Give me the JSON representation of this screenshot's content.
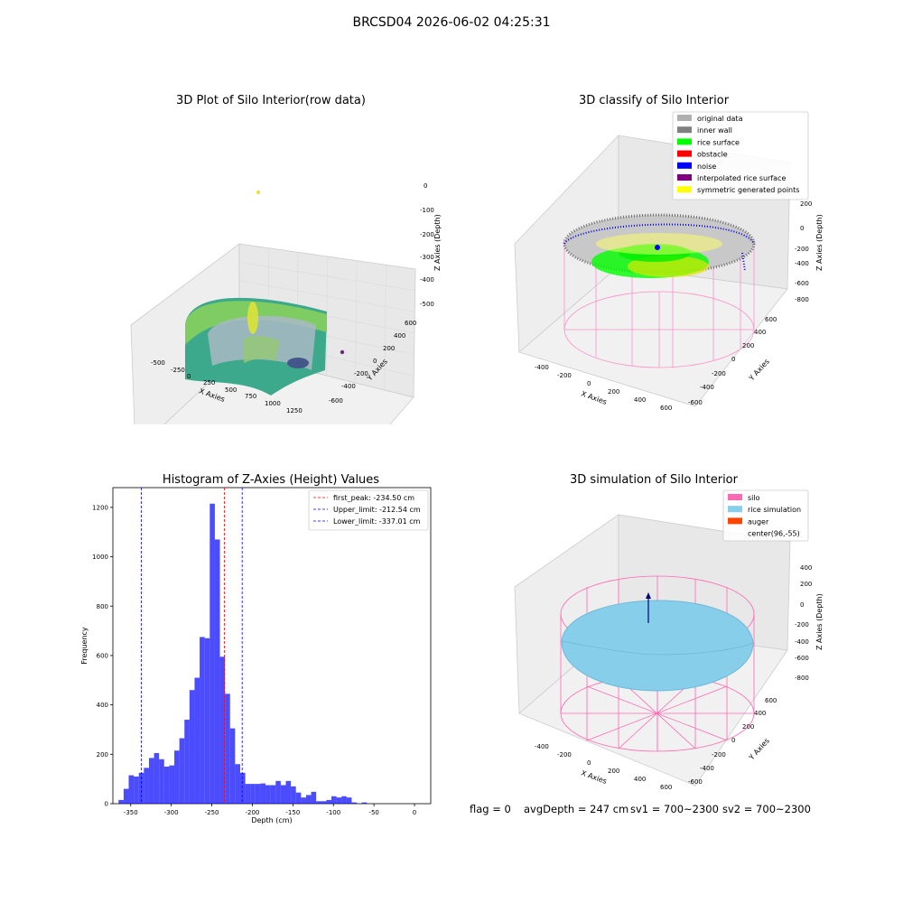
{
  "figure": {
    "title": "BRCSD04 2026-06-02 04:25:31"
  },
  "panels": {
    "raw": {
      "title": "3D Plot of Silo Interior(row data)",
      "xlabel": "X Axies",
      "ylabel": "Y Axies",
      "zlabel": "Z Axies (Depth)",
      "xticks": [
        "-500",
        "-250",
        "0",
        "250",
        "500",
        "750",
        "1000",
        "1250"
      ],
      "yticks": [
        "600",
        "400",
        "200",
        "0",
        "-200",
        "-400",
        "-600"
      ],
      "zticks": [
        "0",
        "-100",
        "-200",
        "-300",
        "-400",
        "-500"
      ]
    },
    "classify": {
      "title": "3D classify of Silo Interior",
      "xlabel": "X Axies",
      "ylabel": "Y Axies",
      "zlabel": "Z Axies (Depth)",
      "xticks": [
        "-400",
        "-200",
        "0",
        "200",
        "400",
        "600"
      ],
      "yticks": [
        "600",
        "400",
        "200",
        "0",
        "-200",
        "-400",
        "-600"
      ],
      "zticks": [
        "200",
        "0",
        "-200",
        "-400",
        "-600",
        "-800"
      ],
      "legend": [
        {
          "label": "original data",
          "color": "#b0b0b0"
        },
        {
          "label": "inner wall",
          "color": "#808080"
        },
        {
          "label": "rice surface",
          "color": "#00ff00"
        },
        {
          "label": "obstacle",
          "color": "#ff0000"
        },
        {
          "label": "noise",
          "color": "#0000ff"
        },
        {
          "label": "interpolated rice surface",
          "color": "#800080"
        },
        {
          "label": "symmetric generated points",
          "color": "#ffff00"
        }
      ]
    },
    "simulation": {
      "title": "3D simulation of Silo Interior",
      "xlabel": "X Axies",
      "ylabel": "Y Axies",
      "zlabel": "Z Axies (Depth)",
      "xticks": [
        "-400",
        "-200",
        "0",
        "200",
        "400",
        "600"
      ],
      "yticks": [
        "600",
        "400",
        "200",
        "0",
        "-200",
        "-400",
        "-600"
      ],
      "zticks": [
        "400",
        "200",
        "0",
        "-200",
        "-400",
        "-600",
        "-800"
      ],
      "legend": [
        {
          "label": "silo",
          "color": "#ff69b4"
        },
        {
          "label": "rice simulation",
          "color": "#87ceeb"
        },
        {
          "label": "auger",
          "color": "#ff4500"
        },
        {
          "label": "center(96,-55)",
          "color": ""
        }
      ]
    }
  },
  "chart_data": {
    "type": "bar",
    "title": "Histogram of Z-Axies (Height) Values",
    "xlabel": "Depth (cm)",
    "ylabel": "Frequency",
    "xlim": [
      -372,
      20
    ],
    "ylim": [
      0,
      1280
    ],
    "xticks": [
      -350,
      -300,
      -250,
      -200,
      -150,
      -100,
      -50,
      0
    ],
    "yticks": [
      0,
      200,
      400,
      600,
      800,
      1000,
      1200
    ],
    "bar_color": "#0000ff",
    "bin_start": -365,
    "bin_width": 6.25,
    "values": [
      15,
      60,
      115,
      110,
      125,
      145,
      185,
      205,
      180,
      150,
      155,
      215,
      265,
      340,
      460,
      510,
      675,
      670,
      1215,
      1070,
      595,
      445,
      305,
      160,
      125,
      80,
      80,
      80,
      82,
      75,
      75,
      92,
      75,
      92,
      70,
      45,
      25,
      35,
      48,
      10,
      10,
      15,
      30,
      25,
      30,
      25,
      5,
      0,
      5
    ],
    "vlines": [
      {
        "label": "first_peak: -234.50 cm",
        "x": -234.5,
        "color": "#ff0000"
      },
      {
        "label": "Upper_limit: -212.54 cm",
        "x": -212.54,
        "color": "#0000ff"
      },
      {
        "label": "Lower_limit: -337.01 cm",
        "x": -337.01,
        "color": "#0000ff"
      }
    ],
    "legend_position": "top-right"
  },
  "footer": {
    "flag": "flag = 0",
    "avg": "avgDepth = 247 cm",
    "sv1": "sv1 = 700~2300",
    "sv2": "sv2 = 700~2300"
  }
}
